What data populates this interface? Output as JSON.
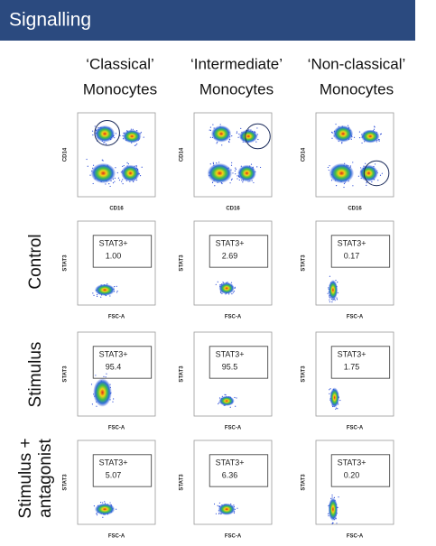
{
  "header": {
    "title": "Signalling"
  },
  "columns": [
    {
      "line1": "‘Classical’",
      "line2": "Monocytes"
    },
    {
      "line1": "‘Intermediate’",
      "line2": "Monocytes"
    },
    {
      "line1": "‘Non-classical’",
      "line2": "Monocytes"
    }
  ],
  "gating": {
    "y_label": "CD14",
    "x_label": "CD16"
  },
  "rows": [
    {
      "label": [
        "Control"
      ],
      "y_label": "STAT3",
      "x_label": "FSC-A",
      "gate_label": "STAT3+",
      "values": [
        "1.00",
        "2.69",
        "0.17"
      ]
    },
    {
      "label": [
        "Stimulus"
      ],
      "y_label": "STAT3",
      "x_label": "FSC-A",
      "gate_label": "STAT3+",
      "values": [
        "95.4",
        "95.5",
        "1.75"
      ]
    },
    {
      "label": [
        "Stimulus +",
        "antagonist"
      ],
      "y_label": "STAT3",
      "x_label": "FSC-A",
      "gate_label": "STAT3+",
      "values": [
        "5.07",
        "6.36",
        "0.20"
      ]
    }
  ]
}
